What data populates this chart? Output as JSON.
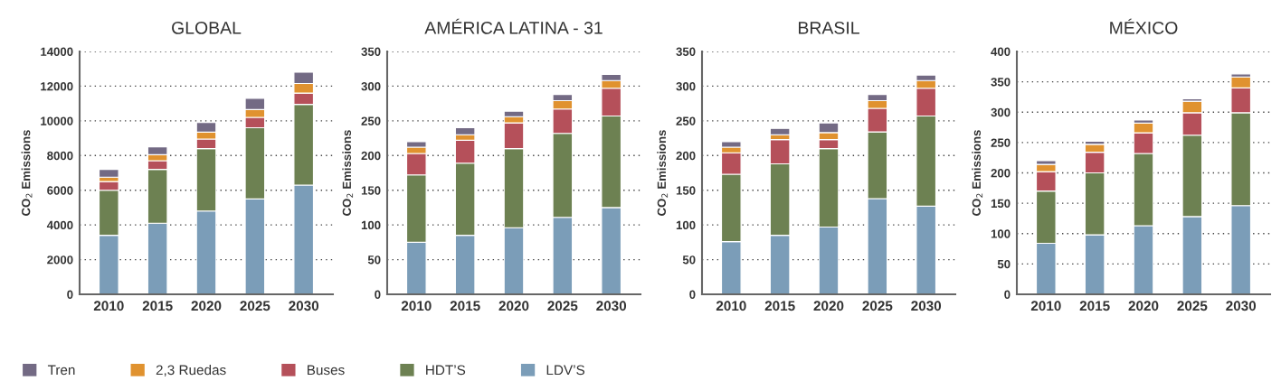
{
  "chart_data": [
    {
      "type": "bar",
      "stacked": true,
      "title": "GLOBAL",
      "ylabel": "CO$_{2}$ Emissions",
      "categories": [
        "2010",
        "2015",
        "2020",
        "2025",
        "2030"
      ],
      "ylim": [
        0,
        14000
      ],
      "yticks": [
        0,
        2000,
        4000,
        6000,
        8000,
        10000,
        12000,
        14000
      ],
      "grid": "y",
      "legend": "bottom",
      "series": [
        {
          "name": "LDV’S",
          "color": "#7b9db8",
          "values": [
            3400,
            4100,
            4800,
            5500,
            6300
          ]
        },
        {
          "name": "HDT’S",
          "color": "#6d8152",
          "values": [
            2600,
            3100,
            3600,
            4100,
            4650
          ]
        },
        {
          "name": "Buses",
          "color": "#b5505a",
          "values": [
            500,
            500,
            550,
            600,
            650
          ]
        },
        {
          "name": "2,3 Ruedas",
          "color": "#e0922f",
          "values": [
            250,
            350,
            400,
            450,
            550
          ]
        },
        {
          "name": "Tren",
          "color": "#736a84",
          "values": [
            450,
            450,
            550,
            650,
            650
          ]
        }
      ]
    },
    {
      "type": "bar",
      "stacked": true,
      "title": "AMÉRICA LATINA - 31",
      "ylabel": "CO$_{2}$ Emissions",
      "categories": [
        "2010",
        "2015",
        "2020",
        "2025",
        "2030"
      ],
      "ylim": [
        0,
        350
      ],
      "yticks": [
        0,
        50,
        100,
        150,
        200,
        250,
        300,
        350
      ],
      "grid": "y",
      "series": [
        {
          "color": "#7b9db8",
          "values": [
            75,
            85,
            96,
            111,
            125
          ]
        },
        {
          "color": "#6d8152",
          "values": [
            97,
            104,
            114,
            121,
            132
          ]
        },
        {
          "color": "#b5505a",
          "values": [
            31,
            33,
            37,
            35,
            40
          ]
        },
        {
          "color": "#e0922f",
          "values": [
            9,
            8,
            9,
            12,
            11
          ]
        },
        {
          "color": "#736a84",
          "values": [
            8,
            10,
            8,
            9,
            9
          ]
        }
      ]
    },
    {
      "type": "bar",
      "stacked": true,
      "title": "BRASIL",
      "ylabel": "CO$_{2}$ Emissions",
      "categories": [
        "2010",
        "2015",
        "2020",
        "2025",
        "2030"
      ],
      "ylim": [
        0,
        350
      ],
      "yticks": [
        0,
        50,
        100,
        150,
        200,
        250,
        300,
        350
      ],
      "grid": "y",
      "series": [
        {
          "color": "#7b9db8",
          "values": [
            76,
            85,
            97,
            138,
            127
          ]
        },
        {
          "color": "#6d8152",
          "values": [
            97,
            103,
            113,
            96,
            130
          ]
        },
        {
          "color": "#b5505a",
          "values": [
            31,
            35,
            13,
            34,
            40
          ]
        },
        {
          "color": "#e0922f",
          "values": [
            8,
            7,
            10,
            11,
            11
          ]
        },
        {
          "color": "#736a84",
          "values": [
            8,
            9,
            14,
            9,
            8
          ]
        }
      ]
    },
    {
      "type": "bar",
      "stacked": true,
      "title": "MÉXICO",
      "ylabel": "CO$_{2}$ Emissions",
      "categories": [
        "2010",
        "2015",
        "2020",
        "2025",
        "2030"
      ],
      "ylim": [
        0,
        400
      ],
      "yticks": [
        0,
        50,
        100,
        150,
        200,
        250,
        300,
        350,
        400
      ],
      "grid": "y",
      "series": [
        {
          "color": "#7b9db8",
          "values": [
            84,
            98,
            113,
            128,
            146
          ]
        },
        {
          "color": "#6d8152",
          "values": [
            86,
            102,
            119,
            134,
            153
          ]
        },
        {
          "color": "#b5505a",
          "values": [
            32,
            34,
            34,
            37,
            41
          ]
        },
        {
          "color": "#e0922f",
          "values": [
            12,
            13,
            16,
            19,
            18
          ]
        },
        {
          "color": "#736a84",
          "values": [
            6,
            5,
            5,
            4,
            5
          ]
        }
      ]
    }
  ]
}
